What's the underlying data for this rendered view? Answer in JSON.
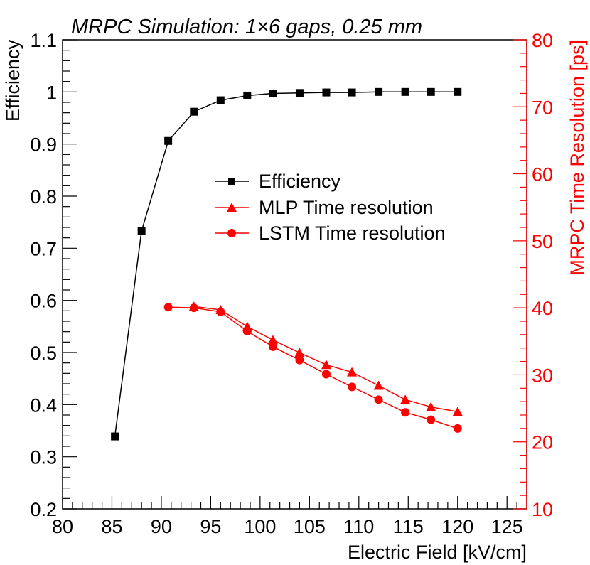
{
  "chart_data": {
    "type": "line",
    "title": "MRPC Simulation: 1×6 gaps, 0.25 mm",
    "xlabel": "Electric Field [kV/cm]",
    "ylabel": "Efficiency",
    "y2label": "MRPC Time Resolution [ps]",
    "xlim": [
      80,
      127
    ],
    "ylim": [
      0.2,
      1.1
    ],
    "y2lim": [
      10,
      80
    ],
    "x_ticks": [
      "80",
      "85",
      "90",
      "95",
      "100",
      "105",
      "110",
      "115",
      "120",
      "125"
    ],
    "y_ticks": [
      "0.2",
      "0.3",
      "0.4",
      "0.5",
      "0.6",
      "0.7",
      "0.8",
      "0.9",
      "1",
      "1.1"
    ],
    "y2_ticks": [
      "10",
      "20",
      "30",
      "40",
      "50",
      "60",
      "70",
      "80"
    ],
    "legend_position": "center",
    "series": [
      {
        "name": "Efficiency",
        "axis": "left",
        "marker": "square",
        "color": "#000000",
        "x": [
          85.3,
          88.0,
          90.7,
          93.3,
          96.0,
          98.7,
          101.3,
          104.0,
          106.7,
          109.3,
          112.0,
          114.7,
          117.3,
          120.0
        ],
        "y": [
          0.339,
          0.733,
          0.906,
          0.962,
          0.984,
          0.993,
          0.997,
          0.998,
          0.999,
          0.999,
          1.0,
          1.0,
          1.0,
          1.0
        ]
      },
      {
        "name": "MLP Time resolution",
        "axis": "right",
        "marker": "triangle",
        "color": "#ff0000",
        "x": [
          93.3,
          96.0,
          98.7,
          101.3,
          104.0,
          106.7,
          109.3,
          112.0,
          114.7,
          117.3,
          120.0
        ],
        "y": [
          40.2,
          39.7,
          37.2,
          35.2,
          33.3,
          31.5,
          30.4,
          28.4,
          26.3,
          25.2,
          24.5
        ]
      },
      {
        "name": "LSTM Time resolution",
        "axis": "right",
        "marker": "circle",
        "color": "#ff0000",
        "x": [
          90.7,
          93.3,
          96.0,
          98.7,
          101.3,
          104.0,
          106.7,
          109.3,
          112.0,
          114.7,
          117.3,
          120.0
        ],
        "y": [
          40.1,
          40.0,
          39.4,
          36.5,
          34.2,
          32.2,
          30.1,
          28.2,
          26.3,
          24.4,
          23.3,
          22.0
        ]
      }
    ]
  }
}
